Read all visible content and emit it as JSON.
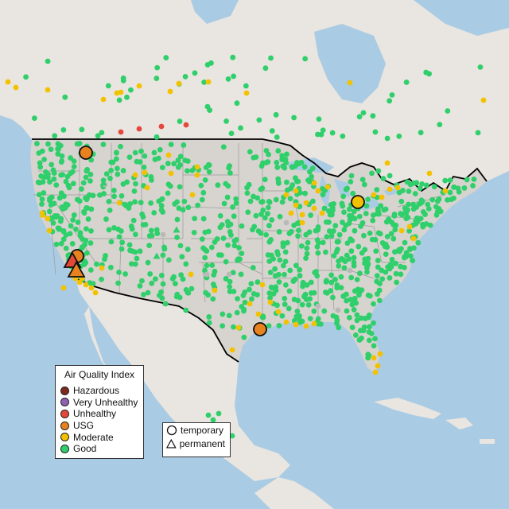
{
  "legend": {
    "title": "Air Quality Index",
    "categories": [
      {
        "label": "Hazardous",
        "color": "#7e2a1f"
      },
      {
        "label": "Very Unhealthy",
        "color": "#8f5fb0"
      },
      {
        "label": "Unhealthy",
        "color": "#e5473b"
      },
      {
        "label": "USG",
        "color": "#e8821e"
      },
      {
        "label": "Moderate",
        "color": "#f2c200"
      },
      {
        "label": "Good",
        "color": "#2fcf6b"
      }
    ]
  },
  "shape_legend": {
    "items": [
      {
        "label": "temporary",
        "icon": "circle-icon"
      },
      {
        "label": "permanent",
        "icon": "triangle-icon"
      }
    ]
  },
  "colors": {
    "water": "#a9cbe3",
    "land_foreign": "#e9e5e0",
    "land_us": "#d7d3ce",
    "border": "#000000",
    "state_lines": "#9b9b9b",
    "no_data": "#b9b9b9"
  }
}
